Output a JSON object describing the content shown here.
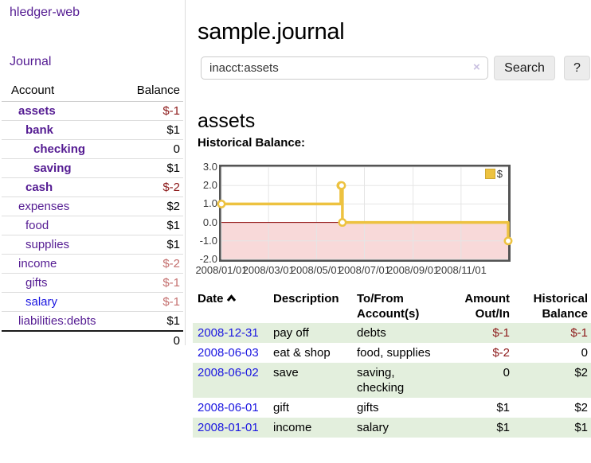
{
  "colors": {
    "link_purple": "#541b92",
    "link_blue": "#1a16e0",
    "negative_strong": "#8d1a1a",
    "negative_faded": "#c46f6e",
    "row_green": "#e3efdd",
    "chart_line": "#EDC240",
    "chart_negative_fill": "#f8d9d9",
    "chart_zero_line": "#8b0000",
    "chart_grid": "#e5e5e5",
    "chart_border": "#545454"
  },
  "sidebar": {
    "brand": "hledger-web",
    "nav_journal": "Journal",
    "accounts": {
      "header_account": "Account",
      "header_balance": "Balance",
      "rows": [
        {
          "name": "assets",
          "depth": 1,
          "bold": true,
          "link_color": "purple",
          "balance": "$-1",
          "balance_style": "negative-strong"
        },
        {
          "name": "bank",
          "depth": 2,
          "bold": true,
          "link_color": "purple",
          "balance": "$1",
          "balance_style": "normal"
        },
        {
          "name": "checking",
          "depth": 3,
          "bold": true,
          "link_color": "purple",
          "balance": "0",
          "balance_style": "normal"
        },
        {
          "name": "saving",
          "depth": 3,
          "bold": true,
          "link_color": "purple",
          "balance": "$1",
          "balance_style": "normal"
        },
        {
          "name": "cash",
          "depth": 2,
          "bold": true,
          "link_color": "purple",
          "balance": "$-2",
          "balance_style": "negative-strong"
        },
        {
          "name": "expenses",
          "depth": 1,
          "bold": false,
          "link_color": "purple",
          "balance": "$2",
          "balance_style": "normal"
        },
        {
          "name": "food",
          "depth": 2,
          "bold": false,
          "link_color": "purple",
          "balance": "$1",
          "balance_style": "normal"
        },
        {
          "name": "supplies",
          "depth": 2,
          "bold": false,
          "link_color": "purple",
          "balance": "$1",
          "balance_style": "normal"
        },
        {
          "name": "income",
          "depth": 1,
          "bold": false,
          "link_color": "purple",
          "balance": "$-2",
          "balance_style": "negative-faded"
        },
        {
          "name": "gifts",
          "depth": 2,
          "bold": false,
          "link_color": "purple",
          "balance": "$-1",
          "balance_style": "negative-faded"
        },
        {
          "name": "salary",
          "depth": 2,
          "bold": false,
          "link_color": "blue",
          "balance": "$-1",
          "balance_style": "negative-faded"
        },
        {
          "name": "liabilities:debts",
          "depth": 1,
          "bold": false,
          "link_color": "purple",
          "balance": "$1",
          "balance_style": "normal"
        }
      ],
      "total": "0"
    }
  },
  "main": {
    "title": "sample.journal",
    "search": {
      "value": "inacct:assets",
      "clear_icon": "×",
      "search_button": "Search",
      "help_button": "?"
    },
    "account_heading": "assets",
    "chart_title": "Historical Balance:",
    "register": {
      "header_date": "Date",
      "header_description": "Description",
      "header_tofrom_line1": "To/From",
      "header_tofrom_line2": "Account(s)",
      "header_amount_line1": "Amount",
      "header_amount_line2": "Out/In",
      "header_balance_line1": "Historical",
      "header_balance_line2": "Balance",
      "rows": [
        {
          "date": "2008-12-31",
          "description": "pay off",
          "accounts": "debts",
          "amount": "$-1",
          "amount_style": "negative-strong",
          "balance": "$-1",
          "balance_style": "negative-strong"
        },
        {
          "date": "2008-06-03",
          "description": "eat & shop",
          "accounts": "food, supplies",
          "amount": "$-2",
          "amount_style": "negative-strong",
          "balance": "0",
          "balance_style": "normal"
        },
        {
          "date": "2008-06-02",
          "description": "save",
          "accounts": "saving,\nchecking",
          "amount": "0",
          "amount_style": "normal",
          "balance": "$2",
          "balance_style": "normal"
        },
        {
          "date": "2008-06-01",
          "description": "gift",
          "accounts": "gifts",
          "amount": "$1",
          "amount_style": "normal",
          "balance": "$2",
          "balance_style": "normal"
        },
        {
          "date": "2008-01-01",
          "description": "income",
          "accounts": "salary",
          "amount": "$1",
          "amount_style": "normal",
          "balance": "$1",
          "balance_style": "normal"
        }
      ]
    }
  },
  "chart_data": {
    "type": "line",
    "title": "Historical Balance:",
    "x_range": [
      "2008-01-01",
      "2008-12-31"
    ],
    "ylim": [
      -2,
      3
    ],
    "y_ticks": [
      "3.0",
      "2.0",
      "1.0",
      "0.0",
      "-1.0",
      "-2.0"
    ],
    "x_ticks": [
      {
        "date": "2008-01-01",
        "label": "2008/01/01"
      },
      {
        "date": "2008-03-01",
        "label": "2008/03/01"
      },
      {
        "date": "2008-05-01",
        "label": "2008/05/01"
      },
      {
        "date": "2008-07-01",
        "label": "2008/07/01"
      },
      {
        "date": "2008-09-01",
        "label": "2008/09/01"
      },
      {
        "date": "2008-11-01",
        "label": "2008/11/01"
      }
    ],
    "series": [
      {
        "name": "$",
        "style": "step",
        "color": "#EDC240",
        "points": [
          {
            "date": "2008-01-01",
            "value": 1
          },
          {
            "date": "2008-06-01",
            "value": 2
          },
          {
            "date": "2008-06-02",
            "value": 2
          },
          {
            "date": "2008-06-03",
            "value": 0
          },
          {
            "date": "2008-12-31",
            "value": -1
          }
        ]
      }
    ],
    "legend": {
      "label": "$",
      "position": "top-right"
    },
    "grid": true,
    "negative_region_shaded": true
  }
}
